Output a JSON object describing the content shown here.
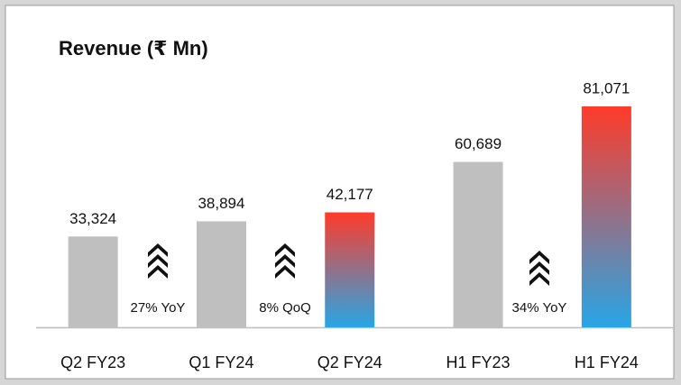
{
  "chart_data": {
    "type": "bar",
    "title": "Revenue (₹ Mn)",
    "categories": [
      "Q2 FY23",
      "Q1 FY24",
      "Q2 FY24",
      "H1 FY23",
      "H1 FY24"
    ],
    "values": [
      33324,
      38894,
      42177,
      60689,
      81071
    ],
    "value_labels": [
      "33,324",
      "38,894",
      "42,177",
      "60,689",
      "81,071"
    ],
    "colors": [
      "#bfbfbf",
      "#bfbfbf",
      [
        "#ff3b2a",
        "#27a6e6"
      ],
      "#bfbfbf",
      [
        "#ff3b2a",
        "#27a6e6"
      ]
    ],
    "annotations": [
      "27% YoY",
      "8% QoQ",
      "34% YoY"
    ]
  }
}
